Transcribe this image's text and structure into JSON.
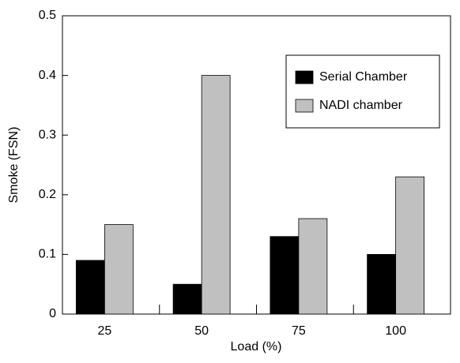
{
  "chart_data": {
    "type": "bar",
    "x_label": "Load (%)",
    "y_label": "Smoke (FSN)",
    "categories": [
      "25",
      "50",
      "75",
      "100"
    ],
    "series": [
      {
        "name": "Serial Chamber",
        "color": "#000000",
        "values": [
          0.09,
          0.05,
          0.13,
          0.1
        ]
      },
      {
        "name": "NADI chamber",
        "color": "#c0c0c0",
        "values": [
          0.15,
          0.4,
          0.16,
          0.23
        ]
      }
    ],
    "ylim": [
      0,
      0.5
    ],
    "yticks": [
      0,
      0.1,
      0.2,
      0.3,
      0.4,
      0.5
    ],
    "legend": "upper right"
  }
}
